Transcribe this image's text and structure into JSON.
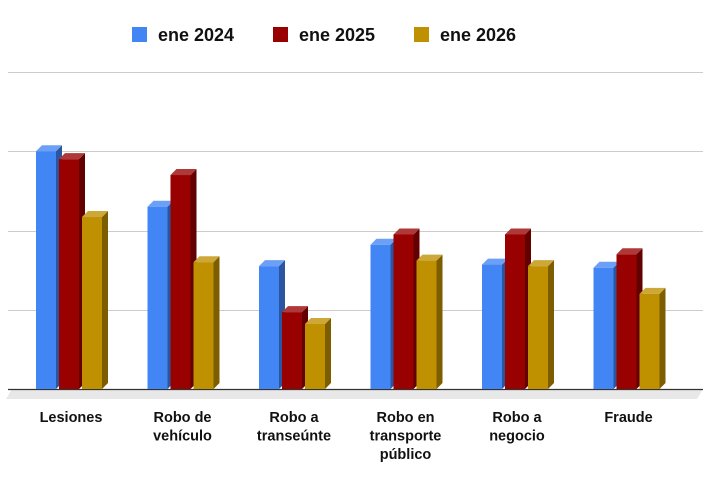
{
  "chart_data": {
    "type": "bar",
    "title": "",
    "xlabel": "",
    "ylabel": "",
    "ylim": [
      0,
      400
    ],
    "grid": true,
    "legend_position": "top",
    "categories": [
      [
        "Lesiones"
      ],
      [
        "Robo de",
        "vehículo"
      ],
      [
        "Robo a",
        "transeúnte"
      ],
      [
        "Robo en",
        "transporte",
        "público"
      ],
      [
        "Robo a",
        "negocio"
      ],
      [
        "Fraude"
      ]
    ],
    "series": [
      {
        "name": "ene 2024",
        "color": "#4285f4",
        "values": [
          300,
          230,
          155,
          182,
          157,
          153
        ]
      },
      {
        "name": "ene 2025",
        "color": "#990000",
        "values": [
          290,
          270,
          97,
          195,
          195,
          170
        ]
      },
      {
        "name": "ene 2026",
        "color": "#bf9000",
        "values": [
          217,
          160,
          82,
          162,
          155,
          120
        ]
      }
    ]
  }
}
